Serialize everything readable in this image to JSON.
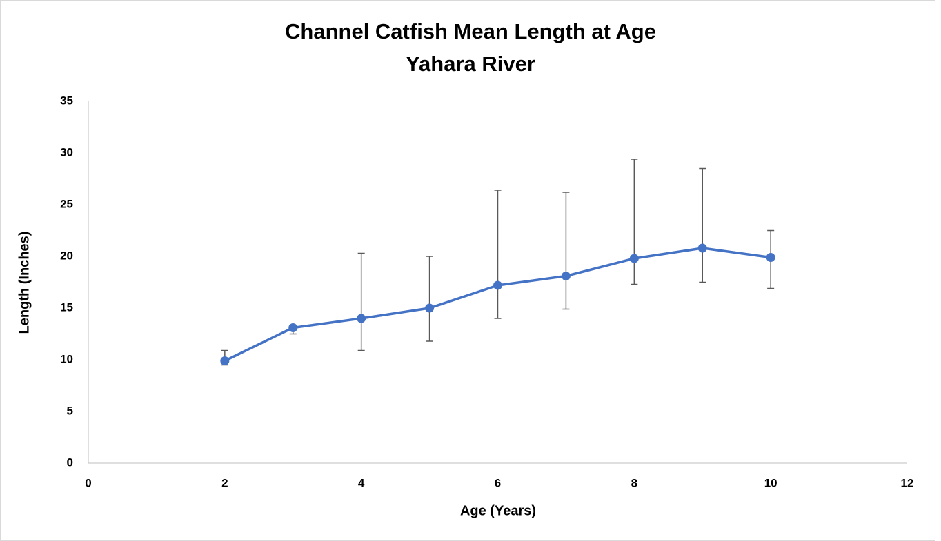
{
  "chart_data": {
    "type": "line",
    "title": "Channel Catfish Mean Length at Age",
    "subtitle": "Yahara River",
    "x_label": "Age (Years)",
    "y_label": "Length (Inches)",
    "x": [
      2,
      3,
      4,
      5,
      6,
      7,
      8,
      9,
      10
    ],
    "series": [
      {
        "color": "#4472c4",
        "values": [
          9.9,
          13.1,
          14.0,
          15.0,
          17.2,
          18.1,
          19.8,
          20.8,
          19.9
        ],
        "error_plus": [
          1.0,
          0.2,
          6.3,
          5.0,
          9.2,
          8.1,
          9.6,
          7.7,
          2.6
        ],
        "error_minus": [
          0.4,
          0.6,
          3.1,
          3.2,
          3.2,
          3.2,
          2.5,
          3.3,
          3.0
        ]
      }
    ],
    "xlim": [
      0,
      12
    ],
    "xticks": [
      0,
      2,
      4,
      6,
      8,
      10,
      12
    ],
    "ylim": [
      0,
      35
    ],
    "yticks": [
      0,
      5,
      10,
      15,
      20,
      25,
      30,
      35
    ],
    "error_color": "#595959",
    "grid": false
  }
}
